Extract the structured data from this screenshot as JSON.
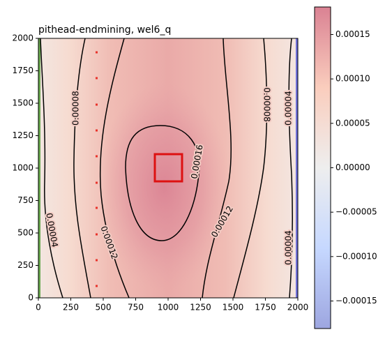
{
  "chart_data": {
    "type": "heatmap",
    "title": "pithead-endmining, wel6_q",
    "xlim": [
      0,
      2000
    ],
    "ylim": [
      0,
      2000
    ],
    "xticks": [
      0,
      250,
      500,
      750,
      1000,
      1250,
      1500,
      1750,
      2000
    ],
    "yticks": [
      0,
      250,
      500,
      750,
      1000,
      1250,
      1500,
      1750,
      2000
    ],
    "contour_levels": [
      4e-05,
      8e-05,
      0.00012,
      0.00016
    ],
    "contour_color": "#000000",
    "colorbar": {
      "clim": [
        -0.000181,
        0.000181
      ],
      "cmap": [
        "#9da6e0",
        "#c6d8ff",
        "#eeeeee",
        "#facdbd",
        "#da8293"
      ],
      "ticks": [
        {
          "value": -0.00015,
          "label": "−0.00015"
        },
        {
          "value": -0.0001,
          "label": "−0.00010"
        },
        {
          "value": -5e-05,
          "label": "−0.00005"
        },
        {
          "value": 0,
          "label": "0.00000"
        },
        {
          "value": 5e-05,
          "label": "0.00005"
        },
        {
          "value": 0.0001,
          "label": "0.00010"
        },
        {
          "value": 0.00015,
          "label": "0.00015"
        }
      ]
    }
  }
}
